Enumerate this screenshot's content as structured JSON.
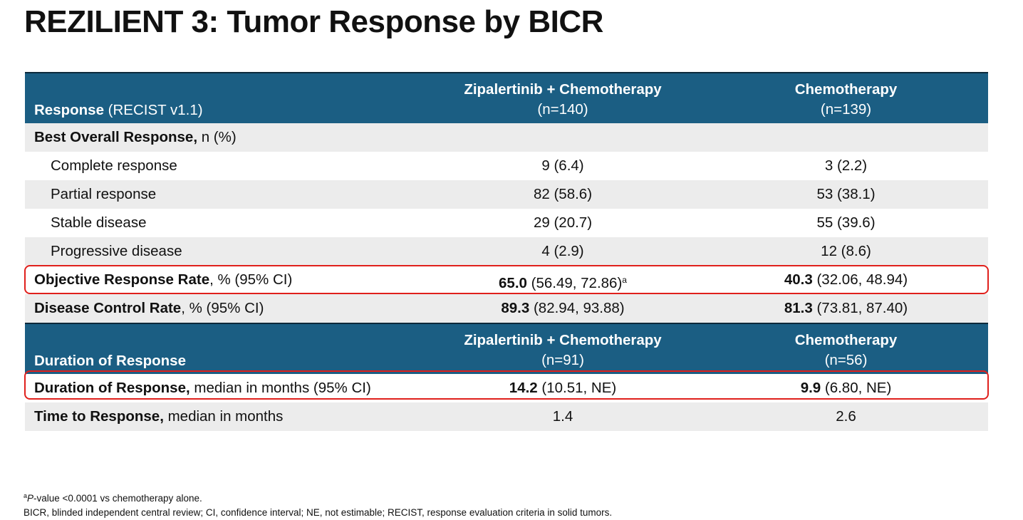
{
  "title": "REZILIENT 3: Tumor Response by BICR",
  "header1": {
    "label_bold": "Response",
    "label_rest": " (RECIST v1.1)",
    "arm1_name": "Zipalertinib + Chemotherapy",
    "arm1_n": "(n=140)",
    "arm2_name": "Chemotherapy",
    "arm2_n": "(n=139)"
  },
  "bor": {
    "label_bold": "Best Overall Response,",
    "label_rest": " n (%)"
  },
  "responses": [
    {
      "label": "Complete response",
      "arm1": "9 (6.4)",
      "arm2": "3 (2.2)"
    },
    {
      "label": "Partial response",
      "arm1": "82 (58.6)",
      "arm2": "53 (38.1)"
    },
    {
      "label": "Stable disease",
      "arm1": "29 (20.7)",
      "arm2": "55 (39.6)"
    },
    {
      "label": "Progressive disease",
      "arm1": "4 (2.9)",
      "arm2": "12 (8.6)"
    }
  ],
  "orr": {
    "label_bold": "Objective Response Rate",
    "label_rest": ", % (95% CI)",
    "arm1_bold": "65.0",
    "arm1_rest": " (56.49, 72.86)",
    "arm1_sup": "a",
    "arm2_bold": "40.3",
    "arm2_rest": " (32.06, 48.94)"
  },
  "dcr": {
    "label_bold": "Disease Control Rate",
    "label_rest": ", % (95% CI)",
    "arm1_bold": "89.3",
    "arm1_rest": " (82.94, 93.88)",
    "arm2_bold": "81.3",
    "arm2_rest": " (73.81, 87.40)"
  },
  "header2": {
    "label": "Duration of Response",
    "arm1_name": "Zipalertinib + Chemotherapy",
    "arm1_n": "(n=91)",
    "arm2_name": "Chemotherapy",
    "arm2_n": "(n=56)"
  },
  "dor": {
    "label_bold": "Duration of Response,",
    "label_rest": " median in months (95% CI)",
    "arm1_bold": "14.2",
    "arm1_rest": " (10.51, NE)",
    "arm2_bold": "9.9",
    "arm2_rest": " (6.80, NE)"
  },
  "ttr": {
    "label_bold": "Time to Response,",
    "label_rest": " median in months",
    "arm1": "1.4",
    "arm2": "2.6"
  },
  "footnotes": {
    "fn1_sup": "a",
    "fn1_italic": "P",
    "fn1_rest": "-value <0.0001 vs chemotherapy alone.",
    "fn2": "BICR, blinded independent central review; CI, confidence interval; NE, not estimable; RECIST, response evaluation criteria in solid tumors."
  },
  "colors": {
    "header_bg": "#1b5e83",
    "row_gray": "#ececec",
    "highlight": "#e0201c"
  }
}
